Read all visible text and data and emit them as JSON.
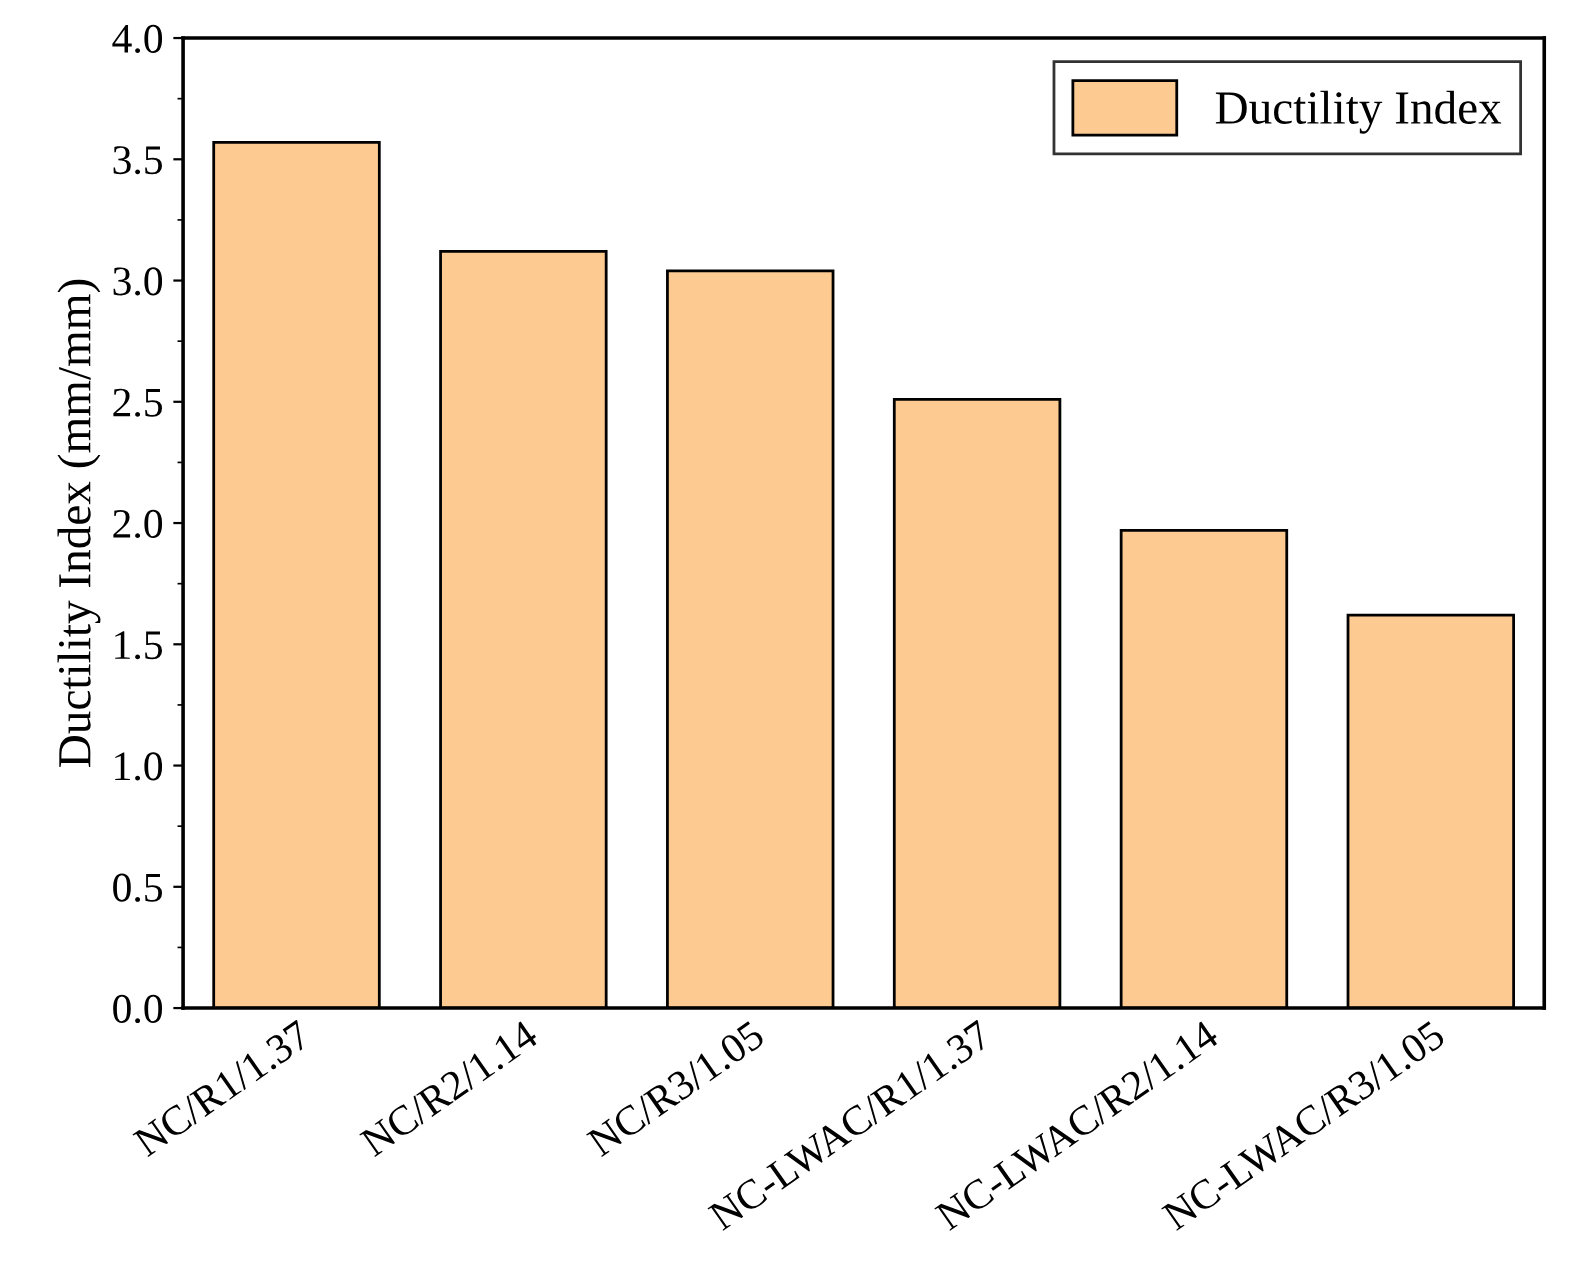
{
  "chart_data": {
    "type": "bar",
    "ylabel": "Ductility Index (mm/mm)",
    "categories": [
      "NC/R1/1.37",
      "NC/R2/1.14",
      "NC/R3/1.05",
      "NC-LWAC/R1/1.37",
      "NC-LWAC/R2/1.14",
      "NC-LWAC/R3/1.05"
    ],
    "series": [
      {
        "name": "Ductility Index",
        "color": "#fdca92",
        "values": [
          3.57,
          3.12,
          3.04,
          2.51,
          1.97,
          1.62
        ]
      }
    ],
    "ylim": [
      0,
      4.0
    ],
    "yticks": [
      {
        "value": 0,
        "label": "0.0"
      },
      {
        "value": 0.5,
        "label": "0.5"
      },
      {
        "value": 1.0,
        "label": "1.0"
      },
      {
        "value": 1.5,
        "label": "1.5"
      },
      {
        "value": 2.0,
        "label": "2.0"
      },
      {
        "value": 2.5,
        "label": "2.5"
      },
      {
        "value": 3.0,
        "label": "3.0"
      },
      {
        "value": 3.5,
        "label": "3.5"
      },
      {
        "value": 4.0,
        "label": "4.0"
      }
    ],
    "legend": "top right",
    "grid": false
  }
}
